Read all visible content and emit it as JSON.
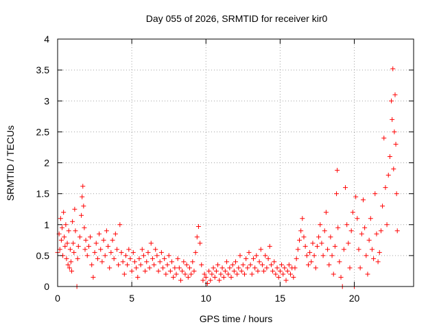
{
  "chart_data": {
    "type": "scatter",
    "title": "Day 055 of 2026, SRMTID for receiver kir0",
    "xlabel": "GPS time / hours",
    "ylabel": "SRMTID / TECUs",
    "xlim": [
      0,
      24
    ],
    "ylim": [
      0,
      4
    ],
    "xticks": [
      0,
      5,
      10,
      15,
      20
    ],
    "xtick_labels": [
      "0",
      "5",
      "10",
      "15",
      "20"
    ],
    "yticks": [
      0,
      0.5,
      1,
      1.5,
      2,
      2.5,
      3,
      3.5,
      4
    ],
    "ytick_labels": [
      "0",
      "0.5",
      "1",
      "1.5",
      "2",
      "2.5",
      "3",
      "3.5",
      "4"
    ],
    "grid": true,
    "marker": "plus",
    "color": "#ff0000",
    "series": [
      {
        "name": "kir0",
        "points": [
          [
            0.0,
            0.55
          ],
          [
            0.1,
            0.85
          ],
          [
            0.15,
            0.6
          ],
          [
            0.2,
            1.1
          ],
          [
            0.25,
            0.75
          ],
          [
            0.3,
            0.95
          ],
          [
            0.35,
            0.5
          ],
          [
            0.4,
            1.2
          ],
          [
            0.45,
            0.8
          ],
          [
            0.5,
            0.65
          ],
          [
            0.55,
            1.0
          ],
          [
            0.6,
            0.45
          ],
          [
            0.65,
            0.7
          ],
          [
            0.7,
            0.35
          ],
          [
            0.75,
            0.9
          ],
          [
            0.8,
            0.3
          ],
          [
            0.85,
            0.6
          ],
          [
            0.9,
            0.4
          ],
          [
            0.95,
            0.25
          ],
          [
            1.0,
            1.05
          ],
          [
            1.05,
            0.7
          ],
          [
            1.1,
            0.55
          ],
          [
            1.15,
            1.25
          ],
          [
            1.2,
            0.9
          ],
          [
            1.3,
            0.0
          ],
          [
            1.35,
            0.45
          ],
          [
            1.4,
            0.65
          ],
          [
            1.5,
            0.8
          ],
          [
            1.6,
            1.15
          ],
          [
            1.65,
            1.45
          ],
          [
            1.7,
            1.62
          ],
          [
            1.75,
            1.3
          ],
          [
            1.8,
            0.95
          ],
          [
            1.85,
            0.6
          ],
          [
            1.9,
            0.75
          ],
          [
            2.0,
            0.5
          ],
          [
            2.1,
            0.65
          ],
          [
            2.2,
            0.8
          ],
          [
            2.3,
            0.35
          ],
          [
            2.4,
            0.15
          ],
          [
            2.5,
            0.55
          ],
          [
            2.6,
            0.7
          ],
          [
            2.7,
            0.45
          ],
          [
            2.8,
            0.85
          ],
          [
            2.9,
            0.6
          ],
          [
            3.0,
            0.4
          ],
          [
            3.1,
            0.75
          ],
          [
            3.2,
            0.5
          ],
          [
            3.3,
            0.9
          ],
          [
            3.4,
            0.65
          ],
          [
            3.5,
            0.3
          ],
          [
            3.6,
            0.55
          ],
          [
            3.7,
            0.75
          ],
          [
            3.8,
            0.45
          ],
          [
            3.9,
            0.85
          ],
          [
            4.0,
            0.6
          ],
          [
            4.1,
            0.35
          ],
          [
            4.2,
            1.0
          ],
          [
            4.3,
            0.55
          ],
          [
            4.4,
            0.4
          ],
          [
            4.5,
            0.2
          ],
          [
            4.6,
            0.5
          ],
          [
            4.7,
            0.35
          ],
          [
            4.8,
            0.6
          ],
          [
            4.9,
            0.45
          ],
          [
            5.0,
            0.25
          ],
          [
            5.1,
            0.55
          ],
          [
            5.2,
            0.4
          ],
          [
            5.3,
            0.3
          ],
          [
            5.4,
            0.15
          ],
          [
            5.5,
            0.45
          ],
          [
            5.6,
            0.35
          ],
          [
            5.7,
            0.6
          ],
          [
            5.8,
            0.5
          ],
          [
            5.9,
            0.25
          ],
          [
            6.0,
            0.4
          ],
          [
            6.1,
            0.55
          ],
          [
            6.2,
            0.3
          ],
          [
            6.3,
            0.7
          ],
          [
            6.4,
            0.45
          ],
          [
            6.5,
            0.35
          ],
          [
            6.6,
            0.6
          ],
          [
            6.7,
            0.5
          ],
          [
            6.8,
            0.25
          ],
          [
            6.9,
            0.4
          ],
          [
            7.0,
            0.55
          ],
          [
            7.1,
            0.3
          ],
          [
            7.2,
            0.45
          ],
          [
            7.3,
            0.2
          ],
          [
            7.4,
            0.35
          ],
          [
            7.5,
            0.5
          ],
          [
            7.6,
            0.25
          ],
          [
            7.7,
            0.4
          ],
          [
            7.8,
            0.15
          ],
          [
            7.9,
            0.3
          ],
          [
            8.0,
            0.2
          ],
          [
            8.1,
            0.45
          ],
          [
            8.2,
            0.3
          ],
          [
            8.3,
            0.1
          ],
          [
            8.4,
            0.25
          ],
          [
            8.5,
            0.4
          ],
          [
            8.6,
            0.2
          ],
          [
            8.7,
            0.35
          ],
          [
            8.8,
            0.15
          ],
          [
            8.9,
            0.3
          ],
          [
            9.0,
            0.2
          ],
          [
            9.1,
            0.4
          ],
          [
            9.2,
            0.25
          ],
          [
            9.3,
            0.55
          ],
          [
            9.4,
            0.8
          ],
          [
            9.5,
            0.97
          ],
          [
            9.6,
            0.7
          ],
          [
            9.7,
            0.35
          ],
          [
            9.8,
            0.1
          ],
          [
            9.9,
            0.2
          ],
          [
            10.0,
            0.15
          ],
          [
            10.1,
            0.05
          ],
          [
            10.2,
            0.25
          ],
          [
            10.3,
            0.1
          ],
          [
            10.4,
            0.2
          ],
          [
            10.5,
            0.3
          ],
          [
            10.6,
            0.15
          ],
          [
            10.7,
            0.25
          ],
          [
            10.8,
            0.35
          ],
          [
            10.9,
            0.1
          ],
          [
            11.0,
            0.2
          ],
          [
            11.1,
            0.3
          ],
          [
            11.2,
            0.15
          ],
          [
            11.3,
            0.25
          ],
          [
            11.4,
            0.4
          ],
          [
            11.5,
            0.2
          ],
          [
            11.6,
            0.3
          ],
          [
            11.7,
            0.15
          ],
          [
            11.8,
            0.35
          ],
          [
            11.9,
            0.25
          ],
          [
            12.0,
            0.4
          ],
          [
            12.1,
            0.2
          ],
          [
            12.2,
            0.3
          ],
          [
            12.3,
            0.5
          ],
          [
            12.4,
            0.25
          ],
          [
            12.5,
            0.35
          ],
          [
            12.6,
            0.2
          ],
          [
            12.7,
            0.45
          ],
          [
            12.8,
            0.3
          ],
          [
            12.9,
            0.55
          ],
          [
            13.0,
            0.35
          ],
          [
            13.1,
            0.2
          ],
          [
            13.2,
            0.45
          ],
          [
            13.3,
            0.3
          ],
          [
            13.4,
            0.5
          ],
          [
            13.5,
            0.25
          ],
          [
            13.6,
            0.4
          ],
          [
            13.7,
            0.6
          ],
          [
            13.8,
            0.35
          ],
          [
            13.9,
            0.25
          ],
          [
            14.0,
            0.5
          ],
          [
            14.1,
            0.3
          ],
          [
            14.2,
            0.45
          ],
          [
            14.3,
            0.65
          ],
          [
            14.4,
            0.35
          ],
          [
            14.5,
            0.25
          ],
          [
            14.6,
            0.4
          ],
          [
            14.7,
            0.2
          ],
          [
            14.8,
            0.3
          ],
          [
            14.9,
            0.15
          ],
          [
            15.0,
            0.25
          ],
          [
            15.1,
            0.35
          ],
          [
            15.2,
            0.2
          ],
          [
            15.3,
            0.3
          ],
          [
            15.4,
            0.1
          ],
          [
            15.5,
            0.25
          ],
          [
            15.6,
            0.35
          ],
          [
            15.7,
            0.2
          ],
          [
            15.8,
            0.3
          ],
          [
            15.9,
            0.15
          ],
          [
            16.0,
            0.3
          ],
          [
            16.1,
            0.45
          ],
          [
            16.2,
            0.6
          ],
          [
            16.3,
            0.75
          ],
          [
            16.4,
            0.9
          ],
          [
            16.5,
            1.1
          ],
          [
            16.6,
            0.8
          ],
          [
            16.7,
            0.65
          ],
          [
            16.8,
            0.5
          ],
          [
            16.9,
            0.35
          ],
          [
            17.0,
            0.55
          ],
          [
            17.1,
            0.4
          ],
          [
            17.2,
            0.7
          ],
          [
            17.3,
            0.5
          ],
          [
            17.4,
            0.3
          ],
          [
            17.5,
            0.65
          ],
          [
            17.6,
            0.8
          ],
          [
            17.7,
            1.0
          ],
          [
            17.8,
            0.7
          ],
          [
            17.9,
            0.5
          ],
          [
            18.0,
            0.9
          ],
          [
            18.1,
            1.2
          ],
          [
            18.2,
            0.6
          ],
          [
            18.3,
            0.35
          ],
          [
            18.4,
            0.8
          ],
          [
            18.5,
            0.5
          ],
          [
            18.6,
            0.2
          ],
          [
            18.7,
            0.65
          ],
          [
            18.8,
            1.5
          ],
          [
            18.85,
            1.88
          ],
          [
            18.9,
            0.95
          ],
          [
            19.0,
            0.4
          ],
          [
            19.1,
            0.15
          ],
          [
            19.2,
            0.0
          ],
          [
            19.3,
            0.6
          ],
          [
            19.4,
            1.6
          ],
          [
            19.5,
            1.0
          ],
          [
            19.6,
            0.7
          ],
          [
            19.7,
            0.3
          ],
          [
            19.8,
            0.9
          ],
          [
            19.9,
            1.2
          ],
          [
            20.0,
            0.0
          ],
          [
            20.1,
            1.45
          ],
          [
            20.2,
            1.1
          ],
          [
            20.3,
            0.6
          ],
          [
            20.4,
            0.3
          ],
          [
            20.5,
            0.85
          ],
          [
            20.6,
            1.4
          ],
          [
            20.7,
            0.95
          ],
          [
            20.8,
            0.5
          ],
          [
            20.9,
            0.2
          ],
          [
            21.0,
            0.75
          ],
          [
            21.1,
            1.1
          ],
          [
            21.2,
            0.6
          ],
          [
            21.3,
            0.45
          ],
          [
            21.4,
            1.5
          ],
          [
            21.5,
            0.85
          ],
          [
            21.6,
            0.4
          ],
          [
            21.7,
            0.55
          ],
          [
            21.8,
            0.9
          ],
          [
            21.9,
            1.3
          ],
          [
            22.0,
            2.4
          ],
          [
            22.1,
            1.6
          ],
          [
            22.2,
            1.0
          ],
          [
            22.3,
            1.8
          ],
          [
            22.4,
            2.1
          ],
          [
            22.5,
            3.0
          ],
          [
            22.55,
            2.7
          ],
          [
            22.6,
            3.52
          ],
          [
            22.65,
            1.9
          ],
          [
            22.7,
            2.5
          ],
          [
            22.75,
            3.1
          ],
          [
            22.8,
            2.3
          ],
          [
            22.85,
            1.5
          ],
          [
            22.9,
            0.9
          ]
        ]
      }
    ]
  }
}
